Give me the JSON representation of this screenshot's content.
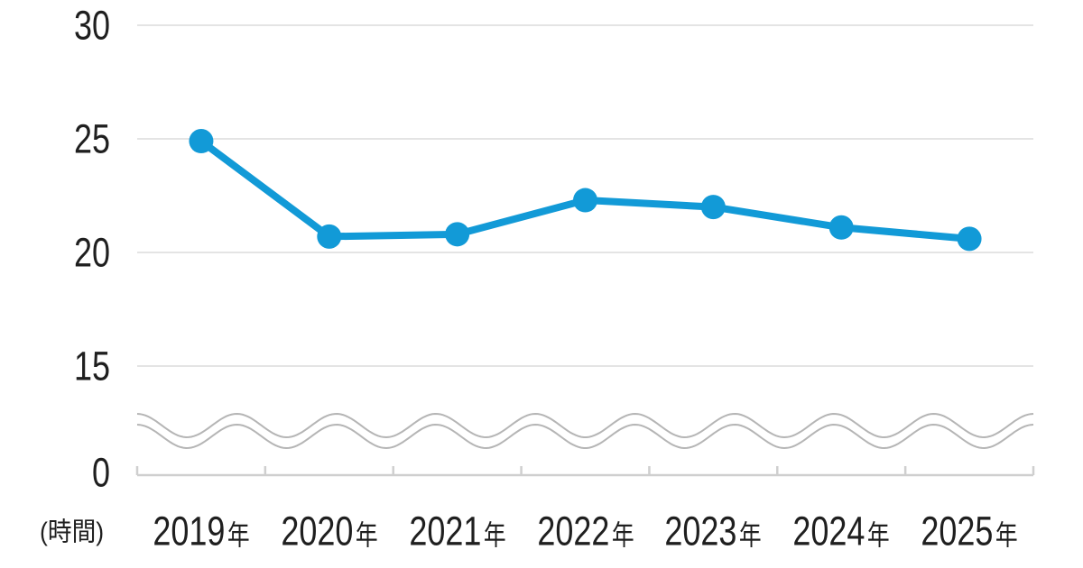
{
  "chart_data": {
    "type": "line",
    "unit_label": "(時間)",
    "categories": [
      "2019",
      "2020",
      "2021",
      "2022",
      "2023",
      "2024",
      "2025"
    ],
    "category_suffix": "年",
    "values": [
      24.9,
      20.7,
      20.8,
      22.3,
      22.0,
      21.1,
      20.6
    ],
    "y_axis": {
      "ticks": [
        30,
        25,
        20,
        15,
        0
      ],
      "visible_range": [
        15,
        30
      ],
      "axis_break_between": [
        0,
        15
      ]
    },
    "grid": true,
    "legend": false,
    "colors": {
      "line": "#129ad7",
      "grid": "#e4e4e4",
      "axis": "#cfcfcf",
      "wave": "#b5b5b5",
      "text": "#1f1f1f"
    }
  }
}
